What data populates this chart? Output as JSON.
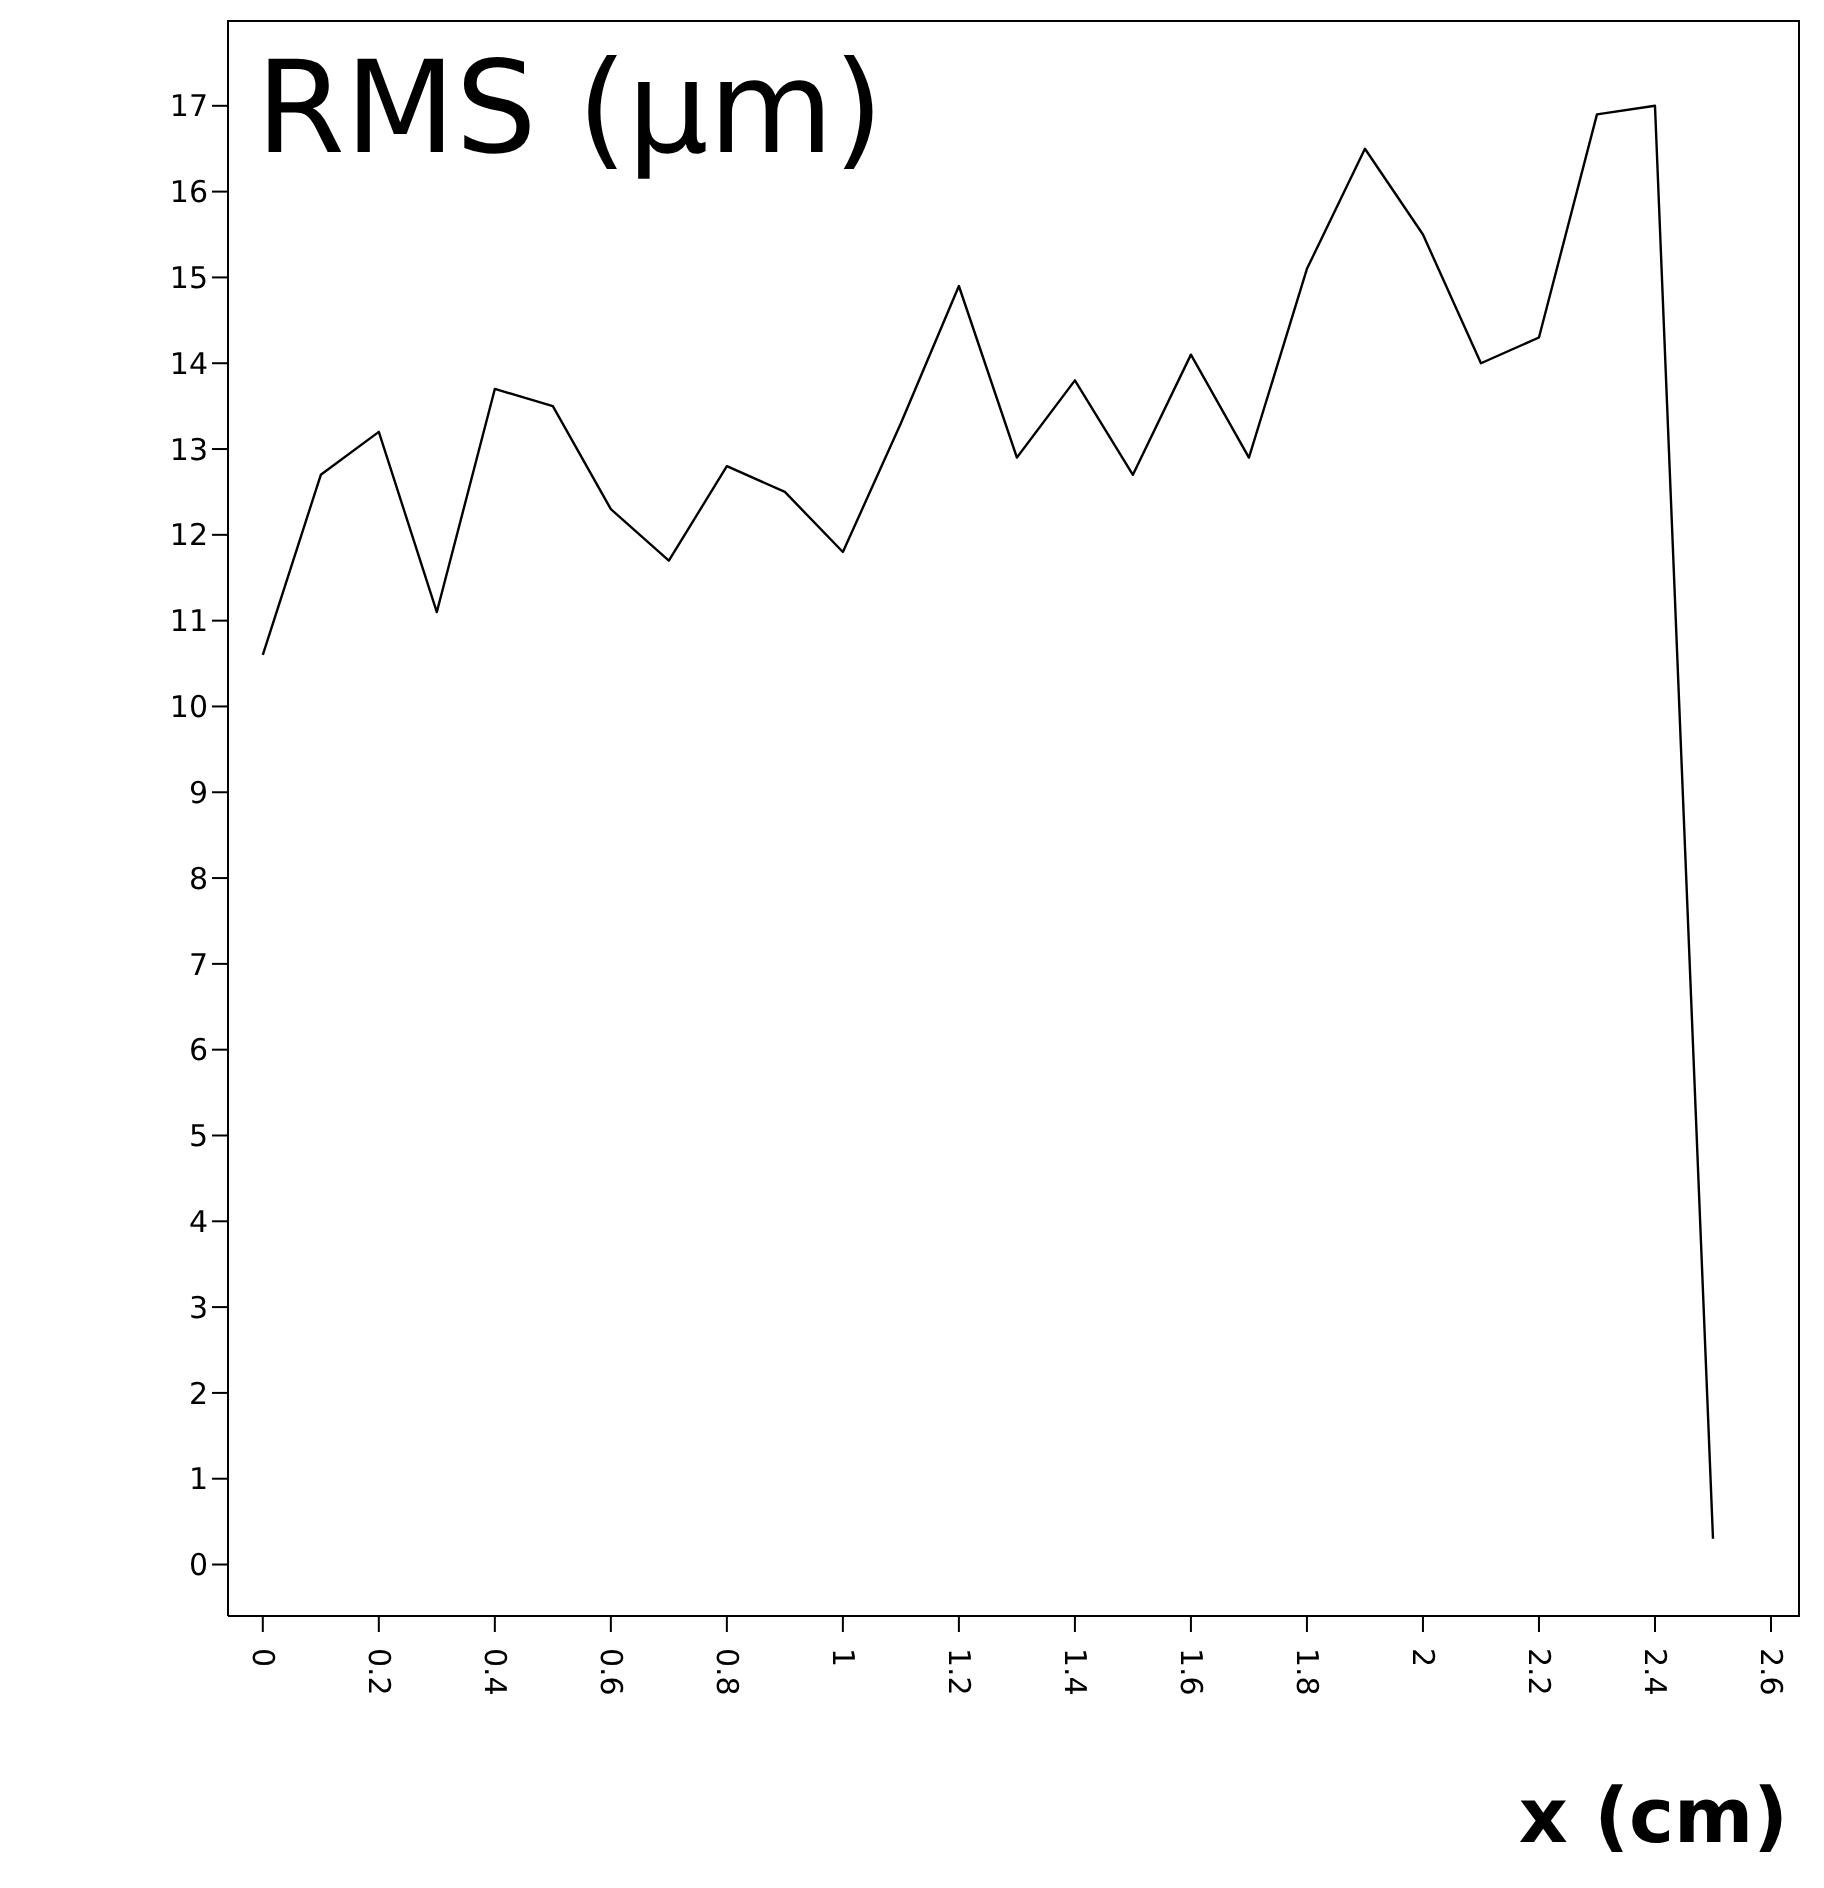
{
  "chart_data": {
    "type": "line",
    "title": "RMS (μm)",
    "xlabel": "x (cm)",
    "x": [
      0,
      0.1,
      0.2,
      0.3,
      0.4,
      0.5,
      0.6,
      0.7,
      0.8,
      0.9,
      1,
      1.1,
      1.2,
      1.3,
      1.4,
      1.5,
      1.6,
      1.7,
      1.8,
      1.9,
      2,
      2.1,
      2.2,
      2.3,
      2.4,
      2.5
    ],
    "series": [
      {
        "color": "#000000",
        "values": [
          10.6,
          12.7,
          13.2,
          11.1,
          13.7,
          13.5,
          12.3,
          11.7,
          12.8,
          12.5,
          11.8,
          13.3,
          14.9,
          12.9,
          13.8,
          12.7,
          14.1,
          12.9,
          15.1,
          16.5,
          15.5,
          14.0,
          14.3,
          16.9,
          17.0,
          0.3
        ]
      }
    ],
    "xlim": [
      -0.06,
      2.65
    ],
    "ylim": [
      -0.6,
      18
    ],
    "xticks": [
      0,
      0.2,
      0.4,
      0.6,
      0.8,
      1,
      1.2,
      1.4,
      1.6,
      1.8,
      2,
      2.2,
      2.4,
      2.6
    ],
    "yticks": [
      0,
      1,
      2,
      3,
      4,
      5,
      6,
      7,
      8,
      9,
      10,
      11,
      12,
      13,
      14,
      15,
      16,
      17
    ],
    "grid": false,
    "marker": "none",
    "line_style": "solid"
  }
}
